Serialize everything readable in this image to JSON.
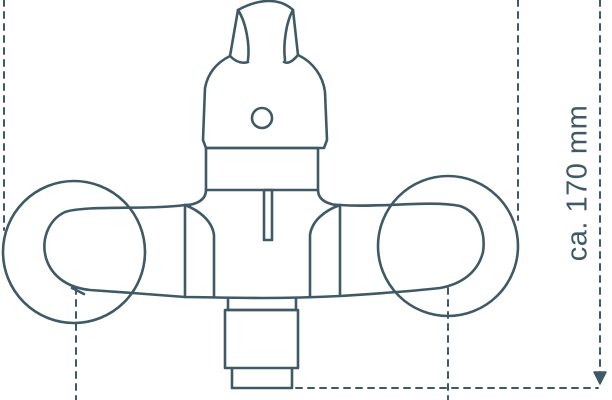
{
  "drawing": {
    "stroke_color": "#3f5a66",
    "dimension": {
      "label": "ca. 170 mm"
    }
  }
}
